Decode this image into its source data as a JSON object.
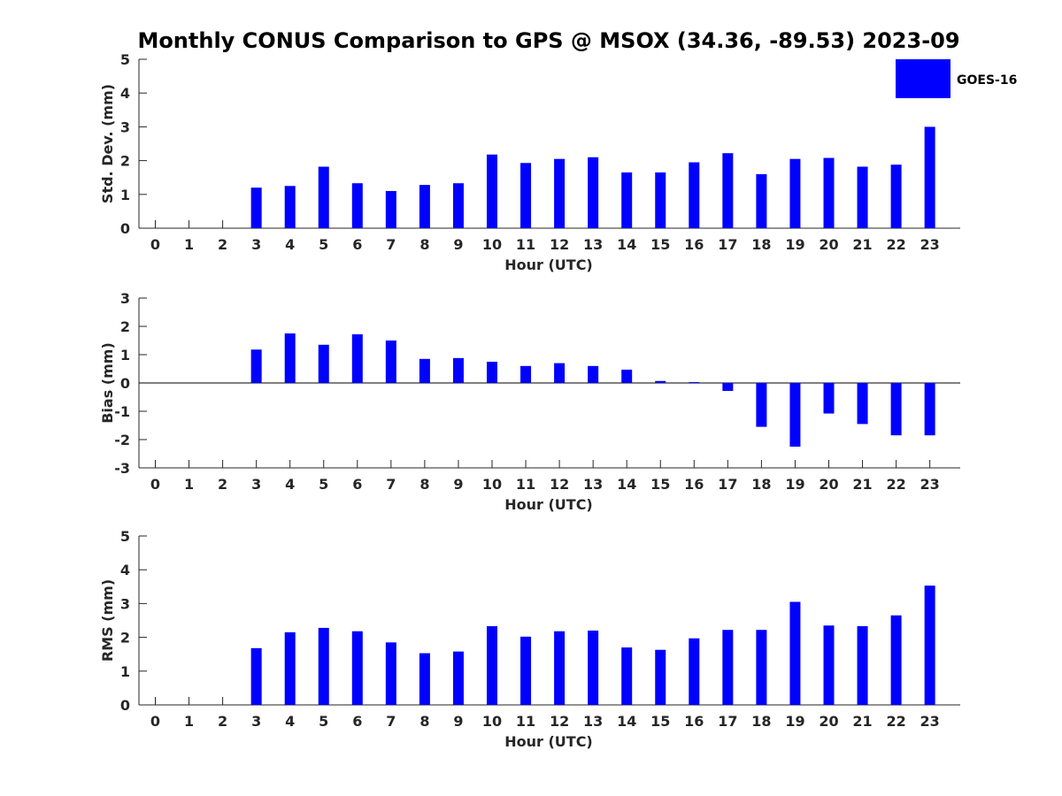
{
  "title": "Monthly CONUS Comparison to GPS @ MSOX (34.36, -89.53) 2023-09",
  "legend": {
    "label": "GOES-16",
    "color": "#0000ff",
    "placement": "top-right"
  },
  "chart_data": [
    {
      "type": "bar",
      "name": "std-dev",
      "xlabel": "Hour (UTC)",
      "ylabel": "Std. Dev. (mm)",
      "ylim": [
        0,
        5
      ],
      "yticks": [
        "0",
        "1",
        "2",
        "3",
        "4",
        "5"
      ],
      "categories": [
        "0",
        "1",
        "2",
        "3",
        "4",
        "5",
        "6",
        "7",
        "8",
        "9",
        "10",
        "11",
        "12",
        "13",
        "14",
        "15",
        "16",
        "17",
        "18",
        "19",
        "20",
        "21",
        "22",
        "23"
      ],
      "series": [
        {
          "name": "GOES-16",
          "values": [
            0,
            0,
            0,
            1.2,
            1.25,
            1.82,
            1.33,
            1.1,
            1.28,
            1.33,
            2.18,
            1.93,
            2.05,
            2.1,
            1.65,
            1.65,
            1.95,
            2.22,
            1.6,
            2.05,
            2.08,
            1.82,
            1.88,
            3.0
          ]
        }
      ]
    },
    {
      "type": "bar",
      "name": "bias",
      "xlabel": "Hour (UTC)",
      "ylabel": "Bias (mm)",
      "ylim": [
        -3,
        3
      ],
      "yticks": [
        "-3",
        "-2",
        "-1",
        "0",
        "1",
        "2",
        "3"
      ],
      "zero_line": true,
      "categories": [
        "0",
        "1",
        "2",
        "3",
        "4",
        "5",
        "6",
        "7",
        "8",
        "9",
        "10",
        "11",
        "12",
        "13",
        "14",
        "15",
        "16",
        "17",
        "18",
        "19",
        "20",
        "21",
        "22",
        "23"
      ],
      "series": [
        {
          "name": "GOES-16",
          "values": [
            0,
            0,
            0,
            1.18,
            1.75,
            1.35,
            1.72,
            1.5,
            0.85,
            0.88,
            0.75,
            0.6,
            0.7,
            0.6,
            0.47,
            0.07,
            0.03,
            -0.28,
            -1.55,
            -2.25,
            -1.08,
            -1.45,
            -1.85,
            -1.85
          ]
        }
      ]
    },
    {
      "type": "bar",
      "name": "rms",
      "xlabel": "Hour (UTC)",
      "ylabel": "RMS (mm)",
      "ylim": [
        0,
        5
      ],
      "yticks": [
        "0",
        "1",
        "2",
        "3",
        "4",
        "5"
      ],
      "categories": [
        "0",
        "1",
        "2",
        "3",
        "4",
        "5",
        "6",
        "7",
        "8",
        "9",
        "10",
        "11",
        "12",
        "13",
        "14",
        "15",
        "16",
        "17",
        "18",
        "19",
        "20",
        "21",
        "22",
        "23"
      ],
      "series": [
        {
          "name": "GOES-16",
          "values": [
            0,
            0,
            0,
            1.68,
            2.15,
            2.28,
            2.18,
            1.85,
            1.53,
            1.58,
            2.33,
            2.02,
            2.18,
            2.2,
            1.7,
            1.63,
            1.97,
            2.22,
            2.22,
            3.05,
            2.35,
            2.33,
            2.65,
            3.53
          ]
        }
      ]
    }
  ]
}
